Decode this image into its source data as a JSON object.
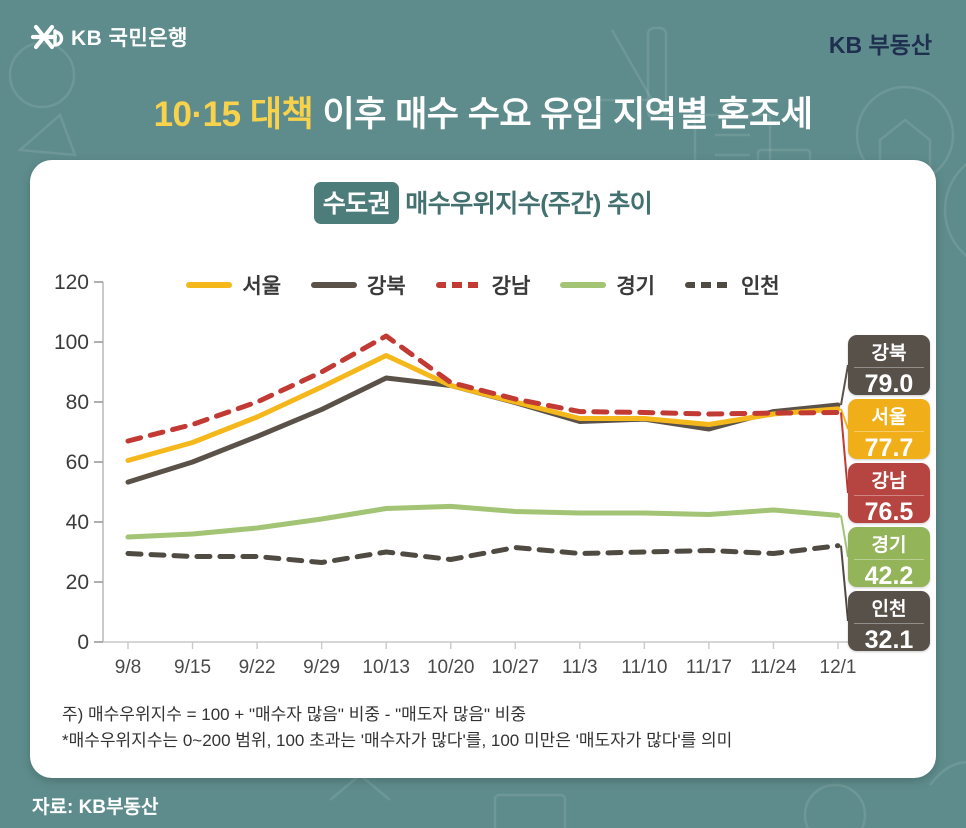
{
  "header": {
    "bank_logo": "KB 국민은행",
    "brand": "KB 부동산"
  },
  "title": {
    "highlight": "10·15 대책",
    "rest": " 이후 매수 수요 유입 지역별 혼조세"
  },
  "card": {
    "region_badge": "수도권",
    "chart_title": "매수우위지수(주간) 추이",
    "notes": [
      "주) 매수우위지수 = 100 + \"매수자 많음\" 비중 - \"매도자 많음\" 비중",
      "*매수우위지수는 0~200 범위, 100 초과는 '매수자가 많다'를, 100 미만은 '매도자가 많다'를 의미"
    ]
  },
  "footer": {
    "source": "자료: KB부동산"
  },
  "colors": {
    "background": "#5e8c8c",
    "title_highlight": "#f9d24b",
    "brand_navy": "#1e2f4f",
    "card_title_teal": "#42716f"
  },
  "chart_data": {
    "type": "line",
    "title": "수도권 매수우위지수(주간) 추이",
    "xlabel": "",
    "ylabel": "",
    "ylim": [
      0,
      120
    ],
    "yticks": [
      0,
      20,
      40,
      60,
      80,
      100,
      120
    ],
    "grid": false,
    "legend_position": "top",
    "categories": [
      "9/8",
      "9/15",
      "9/22",
      "9/29",
      "10/13",
      "10/20",
      "10/27",
      "11/3",
      "11/10",
      "11/17",
      "11/24",
      "12/1"
    ],
    "series": [
      {
        "name": "서울",
        "color": "#f5b81c",
        "dash": false,
        "values": [
          60.5,
          66.5,
          75.0,
          85.0,
          95.5,
          85.5,
          80.0,
          74.5,
          74.5,
          72.5,
          76.0,
          77.7
        ]
      },
      {
        "name": "강북",
        "color": "#5a5249",
        "dash": false,
        "values": [
          53.3,
          60.0,
          68.5,
          77.5,
          88.0,
          85.5,
          79.8,
          73.5,
          74.3,
          71.0,
          76.8,
          79.0
        ]
      },
      {
        "name": "강남",
        "color": "#c13a34",
        "dash": true,
        "values": [
          67.0,
          72.5,
          80.0,
          90.0,
          102.0,
          86.5,
          81.0,
          76.8,
          76.5,
          76.0,
          76.3,
          76.5
        ]
      },
      {
        "name": "경기",
        "color": "#a2c474",
        "dash": false,
        "values": [
          35.0,
          36.0,
          38.0,
          41.0,
          44.5,
          45.2,
          43.5,
          43.0,
          43.0,
          42.5,
          44.0,
          42.2
        ]
      },
      {
        "name": "인천",
        "color": "#4f4a42",
        "dash": true,
        "values": [
          29.5,
          28.5,
          28.5,
          26.5,
          30.0,
          27.5,
          31.5,
          29.5,
          30.0,
          30.5,
          29.5,
          32.1
        ]
      }
    ],
    "end_labels": [
      {
        "name": "강북",
        "value": "79.0",
        "color": "#57514a"
      },
      {
        "name": "서울",
        "value": "77.7",
        "color": "#f0af19"
      },
      {
        "name": "강남",
        "value": "76.5",
        "color": "#b64541"
      },
      {
        "name": "경기",
        "value": "42.2",
        "color": "#93b459"
      },
      {
        "name": "인천",
        "value": "32.1",
        "color": "#57514a"
      }
    ]
  }
}
